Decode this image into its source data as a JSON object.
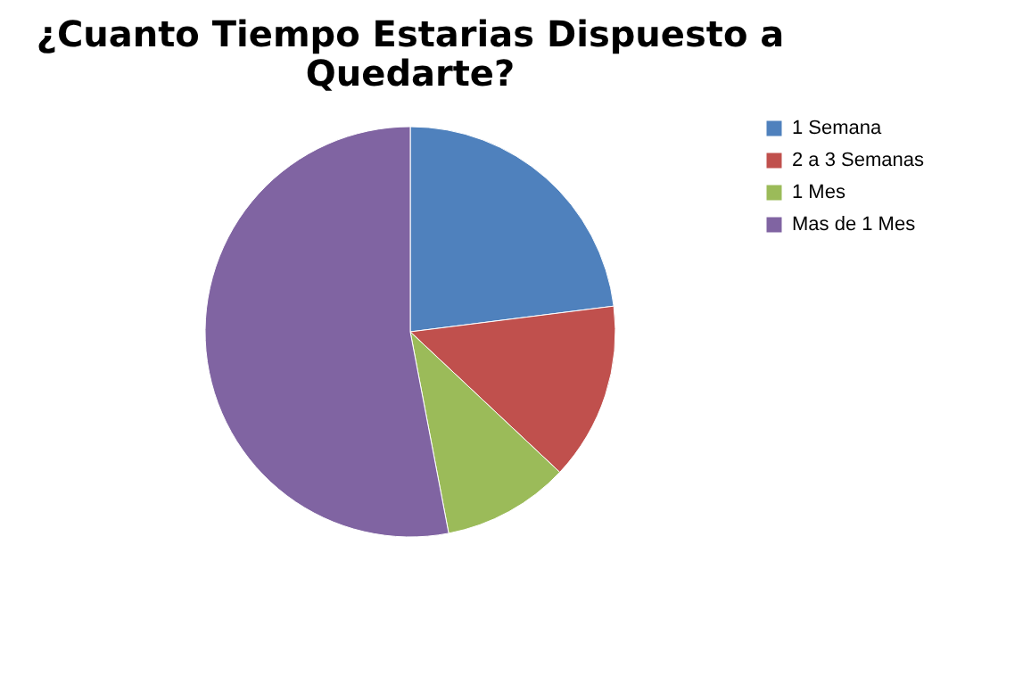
{
  "chart_data": {
    "type": "pie",
    "title": "¿Cuanto Tiempo Estarias Dispuesto a Quedarte?",
    "categories": [
      "1 Semana",
      "2 a 3 Semanas",
      "1 Mes",
      "Mas de 1 Mes"
    ],
    "values": [
      23,
      14,
      10,
      53
    ],
    "colors": [
      "#4f81bd",
      "#c0504d",
      "#9bbb59",
      "#8064a2"
    ],
    "legend": "right"
  }
}
